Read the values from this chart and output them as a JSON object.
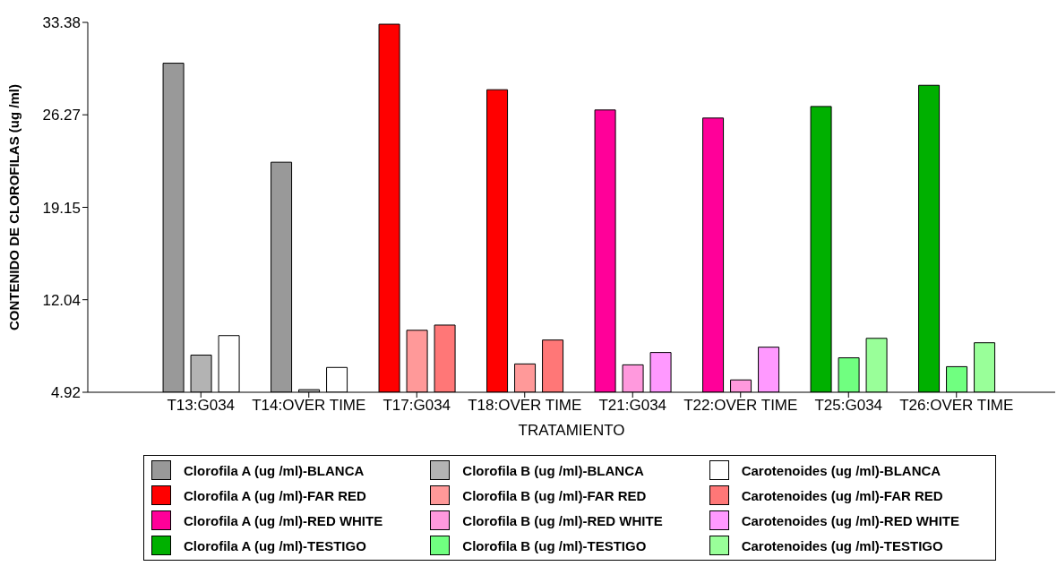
{
  "chart_data": {
    "type": "bar",
    "xlabel": "TRATAMIENTO",
    "ylabel": "CONTENIDO DE CLOROFILAS (ug /ml)",
    "categories": [
      "T13:G034",
      "T14:OVER TIME",
      "T17:G034",
      "T18:OVER TIME",
      "T21:G034",
      "T22:OVER TIME",
      "T25:G034",
      "T26:OVER TIME"
    ],
    "ylim": [
      4.92,
      33.38
    ],
    "yticks": [
      4.92,
      12.04,
      19.15,
      26.27,
      33.38
    ],
    "grid": false,
    "legend": "bottom",
    "series": [
      {
        "name": "Clorofila A (ug /ml)-BLANCA",
        "color": "#999999",
        "values": [
          30.24,
          22.62,
          null,
          null,
          null,
          null,
          null,
          null
        ]
      },
      {
        "name": "Clorofila B (ug /ml)-BLANCA",
        "color": "#b3b3b3",
        "values": [
          7.78,
          5.12,
          null,
          null,
          null,
          null,
          null,
          null
        ]
      },
      {
        "name": "Carotenoides (ug /ml)-BLANCA",
        "color": "#ffffff",
        "values": [
          9.28,
          6.83,
          null,
          null,
          null,
          null,
          null,
          null
        ]
      },
      {
        "name": "Clorofila A (ug /ml)-FAR RED",
        "color": "#ff0000",
        "values": [
          null,
          null,
          33.24,
          28.2,
          null,
          null,
          null,
          null
        ]
      },
      {
        "name": "Clorofila B (ug /ml)-FAR RED",
        "color": "#ff9999",
        "values": [
          null,
          null,
          9.69,
          7.1,
          null,
          null,
          null,
          null
        ]
      },
      {
        "name": "Carotenoides (ug /ml)-FAR RED",
        "color": "#ff7777",
        "values": [
          null,
          null,
          10.09,
          8.94,
          null,
          null,
          null,
          null
        ]
      },
      {
        "name": "Clorofila A (ug /ml)-RED WHITE",
        "color": "#ff0099",
        "values": [
          null,
          null,
          null,
          null,
          26.64,
          26.02,
          null,
          null
        ]
      },
      {
        "name": "Clorofila B (ug /ml)-RED WHITE",
        "color": "#ff99dd",
        "values": [
          null,
          null,
          null,
          null,
          7.03,
          5.87,
          null,
          null
        ]
      },
      {
        "name": "Carotenoides (ug /ml)-RED WHITE",
        "color": "#ff99ff",
        "values": [
          null,
          null,
          null,
          null,
          7.98,
          8.39,
          null,
          null
        ]
      },
      {
        "name": "Clorofila A (ug /ml)-TESTIGO",
        "color": "#00b000",
        "values": [
          null,
          null,
          null,
          null,
          null,
          null,
          26.91,
          28.54
        ]
      },
      {
        "name": "Clorofila B (ug /ml)-TESTIGO",
        "color": "#70ff80",
        "values": [
          null,
          null,
          null,
          null,
          null,
          null,
          7.57,
          6.89
        ]
      },
      {
        "name": "Carotenoides (ug /ml)-TESTIGO",
        "color": "#99ff99",
        "values": [
          null,
          null,
          null,
          null,
          null,
          null,
          9.07,
          8.73
        ]
      }
    ]
  }
}
